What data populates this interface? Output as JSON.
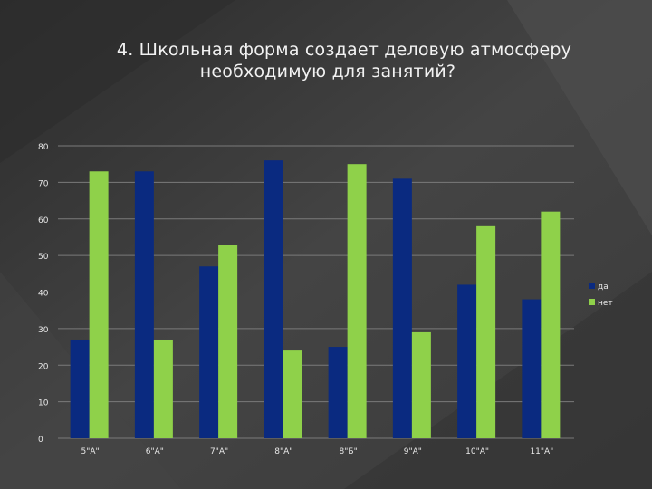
{
  "slide": {
    "title_line1": "4.  Школьная форма создает деловую атмосферу",
    "title_line2": "необходимую для занятий?"
  },
  "colors": {
    "series_da": "#0a2a80",
    "series_net": "#8fd14a",
    "background": "#3a3a3a",
    "gridline": "#7a7a7a",
    "text": "#e8e8e8"
  },
  "chart_data": {
    "type": "bar",
    "categories": [
      "5\"А\"",
      "6\"А\"",
      "7\"А\"",
      "8\"А\"",
      "8\"Б\"",
      "9\"А\"",
      "10\"А\"",
      "11\"А\""
    ],
    "series": [
      {
        "name": "да",
        "values": [
          27,
          73,
          47,
          76,
          25,
          71,
          42,
          38
        ]
      },
      {
        "name": "нет",
        "values": [
          73,
          27,
          53,
          24,
          75,
          29,
          58,
          62
        ]
      }
    ],
    "y_ticks": [
      "0",
      "10",
      "20",
      "30",
      "40",
      "50",
      "60",
      "70",
      "80"
    ],
    "ylim": [
      0,
      80
    ],
    "grid": true,
    "legend_position": "right"
  }
}
